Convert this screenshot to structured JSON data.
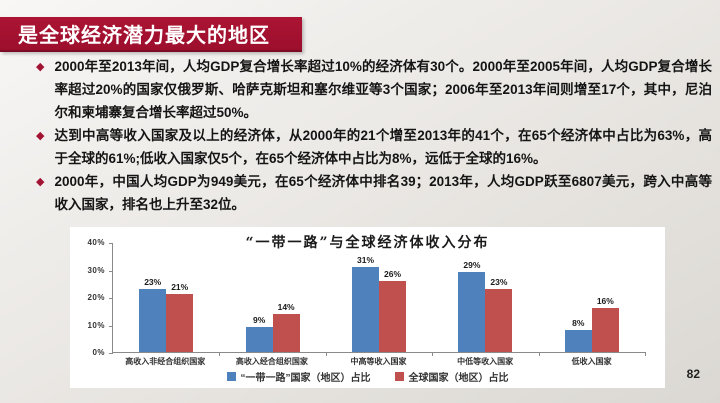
{
  "slide": {
    "title": "是全球经济潜力最大的地区",
    "page_number": "82",
    "accent_color": "#A21232",
    "bullet_glyph": "◆"
  },
  "bullets": [
    {
      "text": "2000年至2013年间，人均GDP复合增长率超过10%的经济体有30个。2000年至2005年间，人均GDP复合增长率超过20%的国家仅俄罗斯、哈萨克斯坦和塞尔维亚等3个国家；2006年至2013年间则增至17个，其中，尼泊尔和柬埔寨复合增长率超过50%。"
    },
    {
      "text": "达到中高等收入国家及以上的经济体，从2000年的21个增至2013年的41个，在65个经济体中占比为63%，高于全球的61%;低收入国家仅5个，在65个经济体中占比为8%，远低于全球的16%。"
    },
    {
      "text": "2000年，中国人均GDP为949美元，在65个经济体中排名39；2013年，人均GDP跃至6807美元，跨入中高等收入国家，排名也上升至32位。"
    }
  ],
  "chart_data": {
    "type": "bar",
    "title": "“一带一路”与全球经济体收入分布",
    "categories": [
      "高收入非经合组织国家",
      "高收入经合组织国家",
      "中高等收入国家",
      "中低等收入国家",
      "低收入国家"
    ],
    "series": [
      {
        "name": "“一带一路”国家（地区）占比",
        "color": "#4F81BD",
        "values": [
          23,
          9,
          31,
          29,
          8
        ]
      },
      {
        "name": "全球国家（地区）占比",
        "color": "#C0504D",
        "values": [
          21,
          14,
          26,
          23,
          16
        ]
      }
    ],
    "unit": "%",
    "ylim": [
      0,
      40
    ],
    "yticks": [
      40,
      30,
      20,
      10,
      0
    ],
    "grid": false,
    "legend_position": "bottom",
    "background": "#FFFFFF"
  }
}
